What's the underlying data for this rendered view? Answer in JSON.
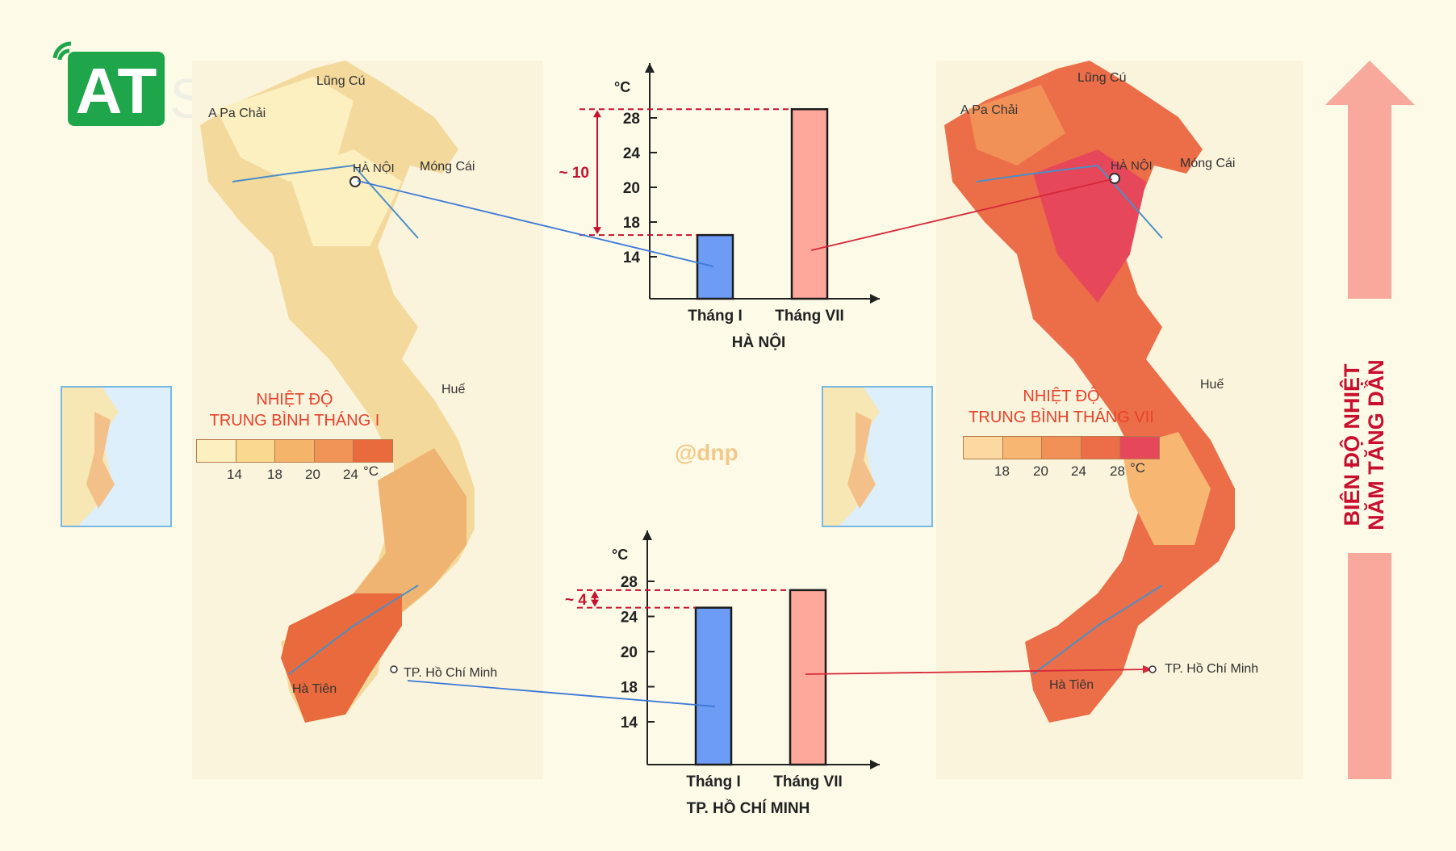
{
  "logo": {
    "text": "AT"
  },
  "watermark": "@dnp",
  "maps": {
    "left": {
      "legend_title_1": "NHIỆT ĐỘ",
      "legend_title_2": "TRUNG BÌNH THÁNG I",
      "legend_ticks": [
        "14",
        "18",
        "20",
        "24"
      ],
      "legend_unit": "°C",
      "legend_colors": [
        "#fcefc0",
        "#f9d98f",
        "#f4b56a",
        "#ef9456",
        "#e96a3c"
      ],
      "places": {
        "lung_cu": "Lũng Cú",
        "a_pa_chai": "A Pa Chải",
        "ha_noi": "HÀ NỘI",
        "mong_cai": "Móng Cái",
        "hue": "Huế",
        "ha_tien": "Hà Tiên",
        "hcm": "TP. Hồ Chí Minh"
      }
    },
    "right": {
      "legend_title_1": "NHIỆT ĐỘ",
      "legend_title_2": "TRUNG BÌNH THÁNG VII",
      "legend_ticks": [
        "18",
        "20",
        "24",
        "28"
      ],
      "legend_unit": "°C",
      "legend_colors": [
        "#fcd9a0",
        "#f7b773",
        "#f19158",
        "#ec6e49",
        "#e7475a"
      ],
      "places": {
        "lung_cu": "Lũng Cú",
        "a_pa_chai": "A Pa Chải",
        "ha_noi": "HÀ NỘI",
        "mong_cai": "Móng Cái",
        "hue": "Huế",
        "ha_tien": "Hà Tiên",
        "hcm": "TP. Hồ Chí Minh"
      }
    }
  },
  "side_label": {
    "line1": "BIÊN ĐỘ NHIỆT",
    "line2": "NĂM TĂNG DẦN",
    "color": "#c8102e",
    "arrow_color": "#f8a99b"
  },
  "chart_data": [
    {
      "type": "bar",
      "title": "HÀ NỘI",
      "ylabel": "°C",
      "categories": [
        "Tháng I",
        "Tháng VII"
      ],
      "values": [
        16.5,
        29
      ],
      "yticks": [
        14,
        18,
        20,
        24,
        28
      ],
      "annotation": "~ 10",
      "colors": [
        "#6c9cf5",
        "#fea89b"
      ]
    },
    {
      "type": "bar",
      "title": "TP. HỒ CHÍ MINH",
      "ylabel": "°C",
      "categories": [
        "Tháng I",
        "Tháng VII"
      ],
      "values": [
        25,
        27
      ],
      "yticks": [
        14,
        18,
        20,
        24,
        28
      ],
      "annotation": "~ 4",
      "colors": [
        "#6c9cf5",
        "#fea89b"
      ]
    }
  ]
}
